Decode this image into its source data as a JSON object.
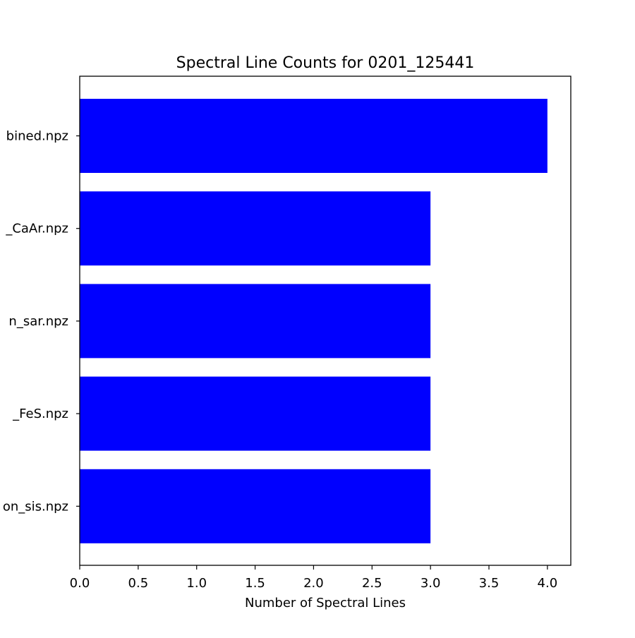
{
  "chart_data": {
    "type": "bar",
    "orientation": "horizontal",
    "title": "Spectral Line Counts for 0201_125441",
    "xlabel": "Number of Spectral Lines",
    "ylabel": "",
    "categories": [
      "bined.npz",
      "_CaAr.npz",
      "n_sar.npz",
      "_FeS.npz",
      "on_sis.npz"
    ],
    "values": [
      4,
      3,
      3,
      3,
      3
    ],
    "xlim": [
      0,
      4.2
    ],
    "xticks": [
      0.0,
      0.5,
      1.0,
      1.5,
      2.0,
      2.5,
      3.0,
      3.5,
      4.0
    ],
    "xtick_labels": [
      "0.0",
      "0.5",
      "1.0",
      "1.5",
      "2.0",
      "2.5",
      "3.0",
      "3.5",
      "4.0"
    ],
    "bar_color": "#0000ff",
    "grid": false,
    "legend": "none"
  }
}
